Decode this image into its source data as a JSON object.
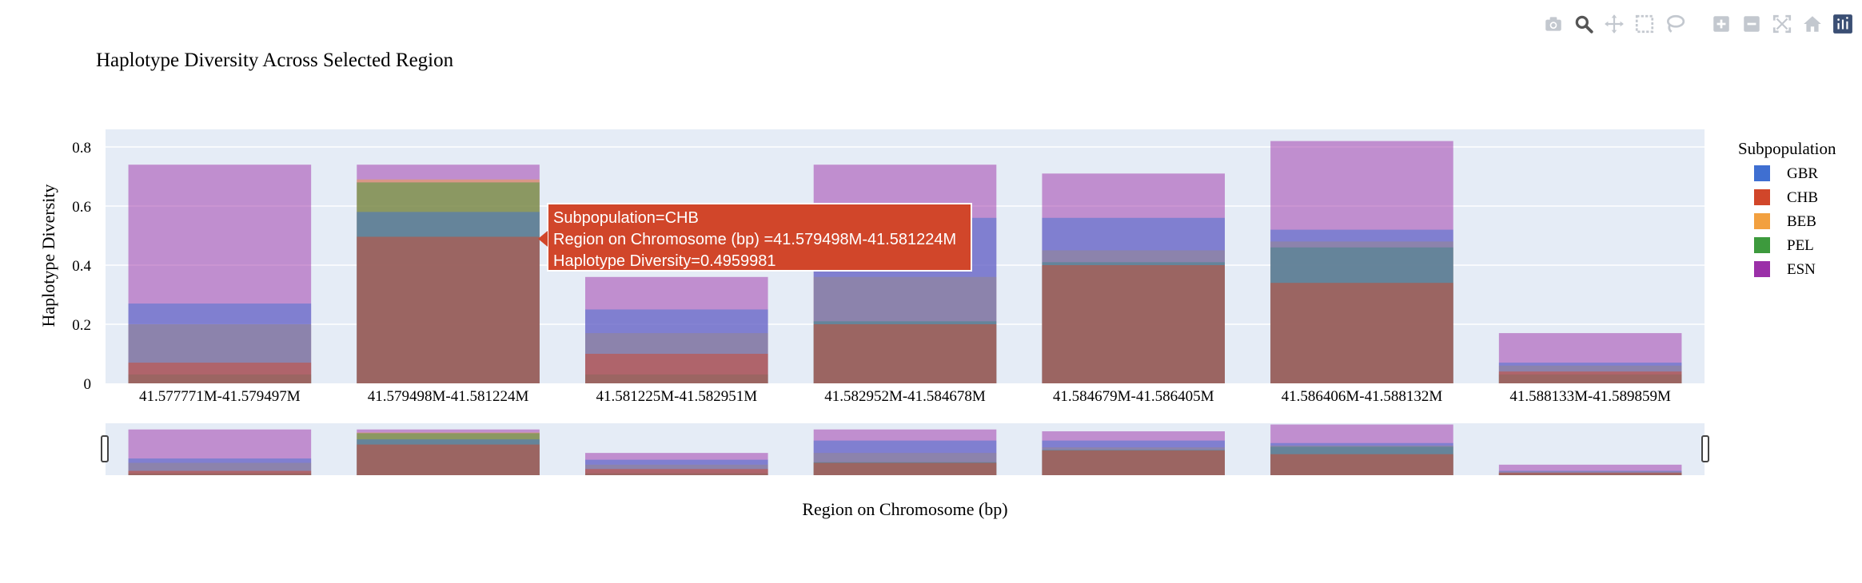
{
  "chart_data": {
    "type": "bar",
    "title": "Haplotype Diversity Across Selected Region",
    "xlabel": "Region on Chromosome (bp)",
    "ylabel": "Haplotype Diversity",
    "categories": [
      "41.577771M-41.579497M",
      "41.579498M-41.581224M",
      "41.581225M-41.582951M",
      "41.582952M-41.584678M",
      "41.584679M-41.586405M",
      "41.586406M-41.588132M",
      "41.588133M-41.589859M"
    ],
    "ylim": [
      0,
      0.84
    ],
    "yticks": [
      "0",
      "0.2",
      "0.4",
      "0.6",
      "0.8"
    ],
    "yticks_values": [
      0,
      0.2,
      0.4,
      0.6,
      0.8
    ],
    "barmode": "overlay",
    "grid": true,
    "legend_title": "Subpopulation",
    "legend_position": "right",
    "series": [
      {
        "name": "GBR",
        "color": "#3f6fd1",
        "values": [
          0.27,
          0.58,
          0.25,
          0.56,
          0.56,
          0.52,
          0.07
        ]
      },
      {
        "name": "CHB",
        "color": "#d1462a",
        "values": [
          0.07,
          0.4959981,
          0.1,
          0.2,
          0.4,
          0.34,
          0.04
        ]
      },
      {
        "name": "BEB",
        "color": "#f2a03f",
        "values": [
          0.2,
          0.69,
          0.17,
          0.36,
          0.45,
          0.48,
          0.06
        ]
      },
      {
        "name": "PEL",
        "color": "#3d9a3d",
        "values": [
          0.03,
          0.68,
          0.03,
          0.21,
          0.41,
          0.46,
          0.03
        ]
      },
      {
        "name": "ESN",
        "color": "#9b30a8",
        "values": [
          0.74,
          0.74,
          0.36,
          0.74,
          0.71,
          0.82,
          0.17
        ]
      }
    ]
  },
  "tooltip": {
    "line1": "Subpopulation=CHB",
    "line2": "Region on Chromosome (bp) =41.579498M-41.581224M",
    "line3": "Haplotype Diversity=0.4959981"
  },
  "modebar": {
    "buttons": [
      "camera-icon",
      "zoom-icon",
      "pan-icon",
      "box-select-icon",
      "lasso-select-icon",
      "zoom-in-icon",
      "zoom-out-icon",
      "autoscale-icon",
      "reset-axes-icon",
      "plotly-logo-icon"
    ]
  }
}
